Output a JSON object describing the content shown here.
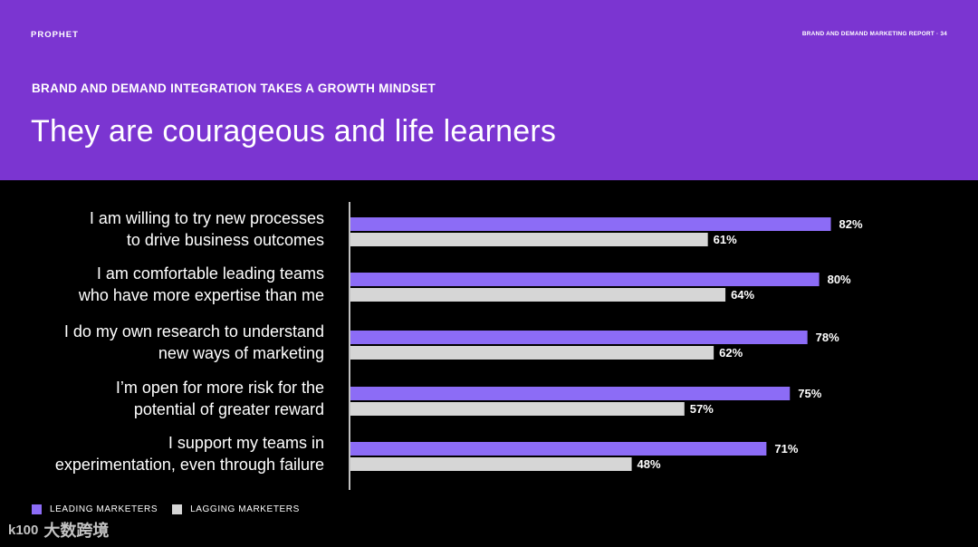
{
  "header": {
    "brand": "PROPHET",
    "report": "BRAND AND DEMAND MARKETING REPORT · 34",
    "kicker": "BRAND AND DEMAND INTEGRATION TAKES A GROWTH MINDSET",
    "title": "They are courageous and life learners"
  },
  "colors": {
    "header_bg": "#7b35d1",
    "leading": "#8c6cf6",
    "lagging": "#d6d6d6",
    "background": "#000000"
  },
  "chart_data": {
    "type": "bar",
    "orientation": "horizontal",
    "xlim": [
      0,
      100
    ],
    "grid": false,
    "legend_position": "bottom-left",
    "categories": [
      [
        "I am willing to try new processes",
        "to drive business outcomes"
      ],
      [
        "I am comfortable leading teams",
        "who have more expertise than me"
      ],
      [
        "I do my own research to understand",
        "new ways of marketing"
      ],
      [
        "I’m open for more risk for the",
        "potential of greater reward"
      ],
      [
        "I support my teams in",
        "experimentation, even through failure"
      ]
    ],
    "series": [
      {
        "name": "LEADING MARKETERS",
        "color": "#8c6cf6",
        "values": [
          82,
          80,
          78,
          75,
          71
        ]
      },
      {
        "name": "LAGGING MARKETERS",
        "color": "#d6d6d6",
        "values": [
          61,
          64,
          62,
          57,
          48
        ]
      }
    ]
  },
  "watermark": {
    "logo": "k100",
    "text": "大数跨境"
  }
}
